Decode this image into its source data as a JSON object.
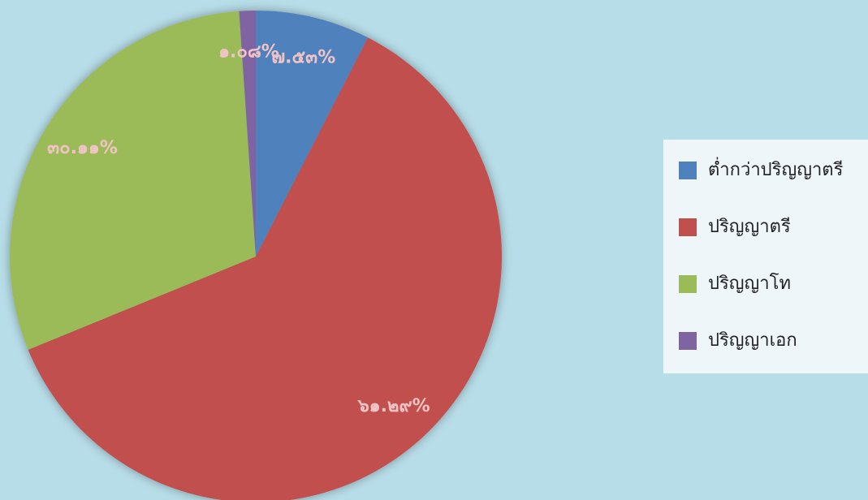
{
  "chart_data": {
    "type": "pie",
    "categories": [
      "ต่ำกว่าปริญญาตรี",
      "ปริญญาตรี",
      "ปริญญาโท",
      "ปริญญาเอก"
    ],
    "values": [
      7.53,
      61.29,
      30.11,
      1.08
    ],
    "value_labels": [
      "๗.๕๓%",
      "๖๑.๒๙%",
      "๓๐.๑๑%",
      "๑.๐๘%"
    ],
    "colors": [
      "#4f81bd",
      "#c0504d",
      "#9bbb59",
      "#8064a2"
    ],
    "legend": "right"
  }
}
